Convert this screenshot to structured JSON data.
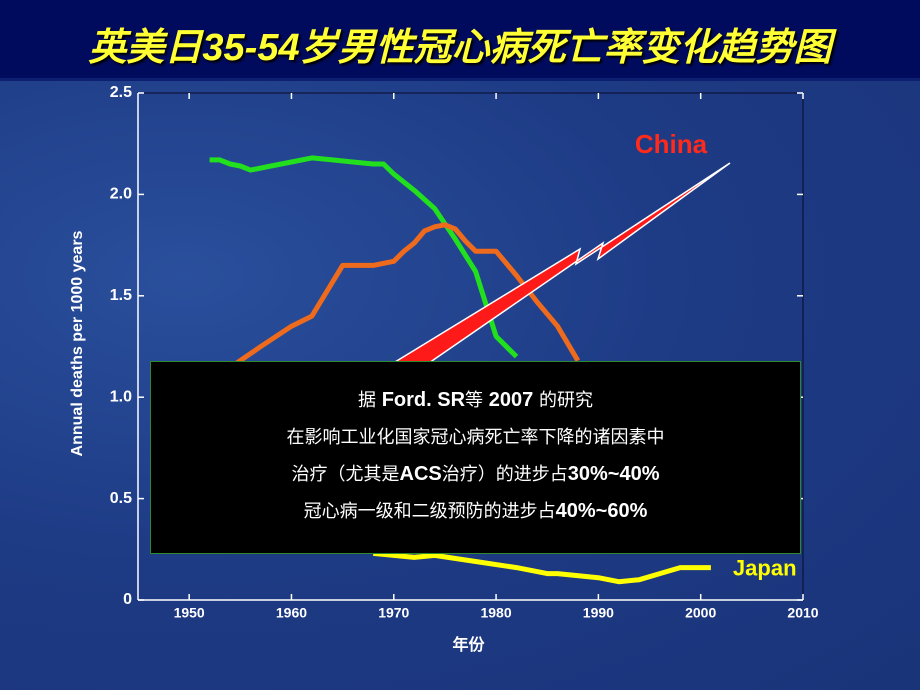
{
  "chart_data": {
    "type": "line",
    "title": "英美日35-54岁男性冠心病死亡率变化趋势图",
    "y_label": "Annual deaths per 1000 years",
    "x_label": "年份",
    "xlim": [
      1945,
      2010
    ],
    "xticks": [
      1950,
      1960,
      1970,
      1980,
      1990,
      2000,
      2010
    ],
    "ylim": [
      0,
      2.5
    ],
    "yticks": [
      0,
      0.5,
      {
        "value": 1,
        "label": "1.0"
      },
      1.5,
      {
        "value": 2,
        "label": "2.0"
      },
      2.5
    ],
    "series": [
      {
        "color": "#22e01e",
        "x": [
          1952,
          1953,
          1954,
          1955,
          1956,
          1958,
          1960,
          1962,
          1964,
          1966,
          1968,
          1969,
          1970,
          1972,
          1974,
          1976,
          1978,
          1980,
          1982
        ],
        "values": [
          2.17,
          2.17,
          2.15,
          2.14,
          2.12,
          2.14,
          2.16,
          2.18,
          2.17,
          2.16,
          2.15,
          2.15,
          2.1,
          2.02,
          1.93,
          1.78,
          1.62,
          1.3,
          1.2
        ]
      },
      {
        "color": "#ee6a1c",
        "x": [
          1954.7,
          1957,
          1960,
          1962,
          1965,
          1968,
          1970,
          1971,
          1972,
          1973,
          1974,
          1975,
          1976,
          1977,
          1978,
          1980,
          1982,
          1984,
          1986,
          1988
        ],
        "values": [
          1.17,
          1.25,
          1.35,
          1.4,
          1.65,
          1.65,
          1.67,
          1.72,
          1.76,
          1.82,
          1.84,
          1.85,
          1.83,
          1.77,
          1.72,
          1.72,
          1.6,
          1.47,
          1.35,
          1.18
        ]
      },
      {
        "name": "Japan",
        "color": "#ffff00",
        "x": [
          1968,
          1970,
          1972,
          1974,
          1978,
          1982,
          1984,
          1985,
          1986,
          1990,
          1991,
          1992,
          1994,
          1996,
          1998,
          2000,
          2001
        ],
        "values": [
          0.23,
          0.22,
          0.21,
          0.22,
          0.19,
          0.16,
          0.14,
          0.13,
          0.13,
          0.11,
          0.1,
          0.09,
          0.1,
          0.13,
          0.16,
          0.16,
          0.16
        ]
      }
    ],
    "annotations": {
      "arrow_label": "China",
      "box_lines": [
        "据 Ford. SR等 2007 的研究",
        "在影响工业化国家冠心病死亡率下降的诸因素中",
        "治疗（尤其是ACS治疗）的进步占30%~40%",
        "冠心病一级和二级预防的进步占40%~60%"
      ]
    }
  }
}
